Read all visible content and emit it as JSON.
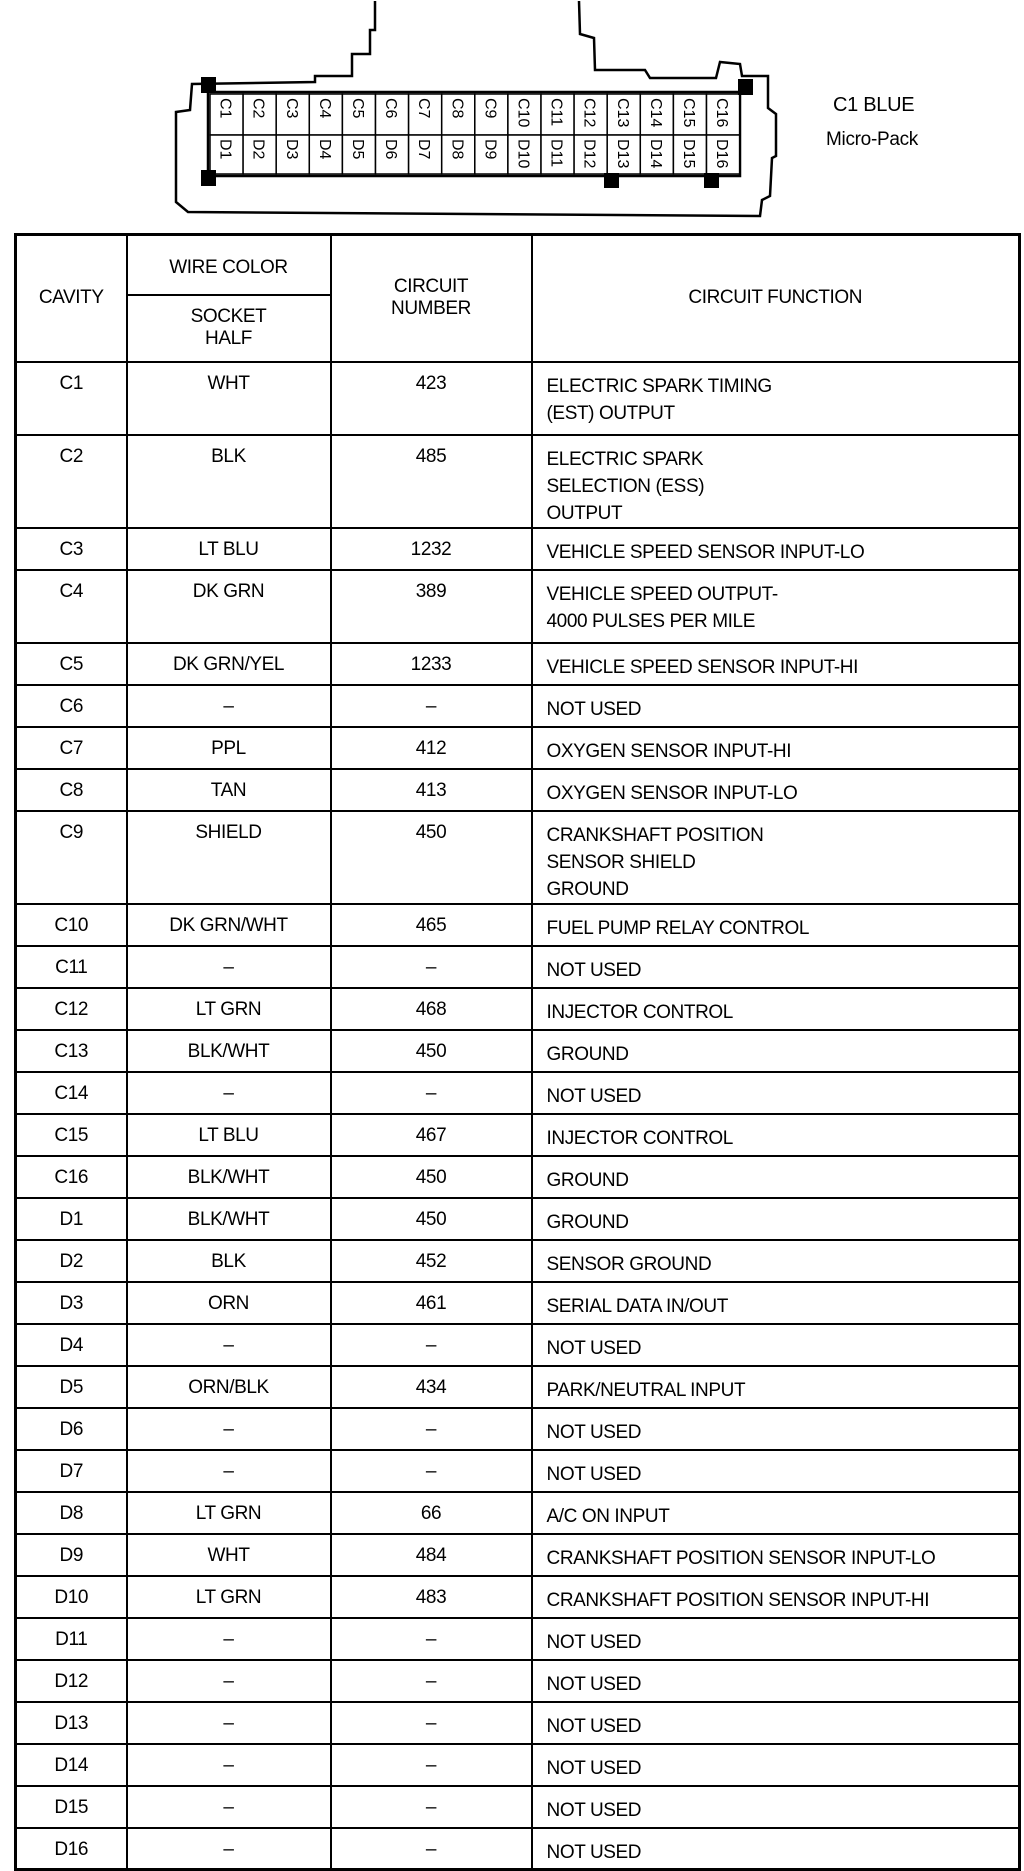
{
  "connector": {
    "name": "C1 BLUE",
    "type": "Micro-Pack",
    "top_row": [
      "C1",
      "C2",
      "C3",
      "C4",
      "C5",
      "C6",
      "C7",
      "C8",
      "C9",
      "C10",
      "C11",
      "C12",
      "C13",
      "C14",
      "C15",
      "C16"
    ],
    "bottom_row": [
      "D1",
      "D2",
      "D3",
      "D4",
      "D5",
      "D6",
      "D7",
      "D8",
      "D9",
      "D10",
      "D11",
      "D12",
      "D13",
      "D14",
      "D15",
      "D16"
    ]
  },
  "table": {
    "headers": {
      "cavity": "CAVITY",
      "wire_color": "WIRE COLOR",
      "socket_half": "SOCKET HALF",
      "circuit_number": "CIRCUIT NUMBER",
      "circuit_function": "CIRCUIT FUNCTION"
    },
    "rows": [
      {
        "cavity": "C1",
        "color": "WHT",
        "circuit": "423",
        "function": "ELECTRIC SPARK TIMING (EST) OUTPUT",
        "lines": 2
      },
      {
        "cavity": "C2",
        "color": "BLK",
        "circuit": "485",
        "function": "ELECTRIC SPARK SELECTION (ESS) OUTPUT",
        "lines": 2
      },
      {
        "cavity": "C3",
        "color": "LT BLU",
        "circuit": "1232",
        "function": "VEHICLE SPEED SENSOR INPUT-LO",
        "lines": 1
      },
      {
        "cavity": "C4",
        "color": "DK GRN",
        "circuit": "389",
        "function": "VEHICLE SPEED OUTPUT-4000 PULSES PER MILE",
        "lines": 2
      },
      {
        "cavity": "C5",
        "color": "DK GRN/YEL",
        "circuit": "1233",
        "function": "VEHICLE SPEED SENSOR INPUT-HI",
        "lines": 1
      },
      {
        "cavity": "C6",
        "color": "–",
        "circuit": "–",
        "function": "NOT USED",
        "lines": 1
      },
      {
        "cavity": "C7",
        "color": "PPL",
        "circuit": "412",
        "function": "OXYGEN SENSOR INPUT-HI",
        "lines": 1
      },
      {
        "cavity": "C8",
        "color": "TAN",
        "circuit": "413",
        "function": "OXYGEN SENSOR INPUT-LO",
        "lines": 1
      },
      {
        "cavity": "C9",
        "color": "SHIELD",
        "circuit": "450",
        "function": "CRANKSHAFT POSITION SENSOR SHIELD GROUND",
        "lines": 2
      },
      {
        "cavity": "C10",
        "color": "DK GRN/WHT",
        "circuit": "465",
        "function": "FUEL PUMP RELAY CONTROL",
        "lines": 1
      },
      {
        "cavity": "C11",
        "color": "–",
        "circuit": "–",
        "function": "NOT USED",
        "lines": 1
      },
      {
        "cavity": "C12",
        "color": "LT GRN",
        "circuit": "468",
        "function": "INJECTOR CONTROL",
        "lines": 1
      },
      {
        "cavity": "C13",
        "color": "BLK/WHT",
        "circuit": "450",
        "function": "GROUND",
        "lines": 1
      },
      {
        "cavity": "C14",
        "color": "–",
        "circuit": "–",
        "function": "NOT USED",
        "lines": 1
      },
      {
        "cavity": "C15",
        "color": "LT BLU",
        "circuit": "467",
        "function": "INJECTOR CONTROL",
        "lines": 1
      },
      {
        "cavity": "C16",
        "color": "BLK/WHT",
        "circuit": "450",
        "function": "GROUND",
        "lines": 1
      },
      {
        "cavity": "D1",
        "color": "BLK/WHT",
        "circuit": "450",
        "function": "GROUND",
        "lines": 1
      },
      {
        "cavity": "D2",
        "color": "BLK",
        "circuit": "452",
        "function": "SENSOR GROUND",
        "lines": 1
      },
      {
        "cavity": "D3",
        "color": "ORN",
        "circuit": "461",
        "function": "SERIAL DATA IN/OUT",
        "lines": 1
      },
      {
        "cavity": "D4",
        "color": "–",
        "circuit": "–",
        "function": "NOT USED",
        "lines": 1
      },
      {
        "cavity": "D5",
        "color": "ORN/BLK",
        "circuit": "434",
        "function": "PARK/NEUTRAL INPUT",
        "lines": 1
      },
      {
        "cavity": "D6",
        "color": "–",
        "circuit": "–",
        "function": "NOT USED",
        "lines": 1
      },
      {
        "cavity": "D7",
        "color": "–",
        "circuit": "–",
        "function": "NOT USED",
        "lines": 1
      },
      {
        "cavity": "D8",
        "color": "LT GRN",
        "circuit": "66",
        "function": "A/C ON INPUT",
        "lines": 1
      },
      {
        "cavity": "D9",
        "color": "WHT",
        "circuit": "484",
        "function": "CRANKSHAFT POSITION SENSOR INPUT-LO",
        "lines": 1
      },
      {
        "cavity": "D10",
        "color": "LT GRN",
        "circuit": "483",
        "function": "CRANKSHAFT POSITION SENSOR INPUT-HI",
        "lines": 1
      },
      {
        "cavity": "D11",
        "color": "–",
        "circuit": "–",
        "function": "NOT USED",
        "lines": 1
      },
      {
        "cavity": "D12",
        "color": "–",
        "circuit": "–",
        "function": "NOT USED",
        "lines": 1
      },
      {
        "cavity": "D13",
        "color": "–",
        "circuit": "–",
        "function": "NOT USED",
        "lines": 1
      },
      {
        "cavity": "D14",
        "color": "–",
        "circuit": "–",
        "function": "NOT USED",
        "lines": 1
      },
      {
        "cavity": "D15",
        "color": "–",
        "circuit": "–",
        "function": "NOT USED",
        "lines": 1
      },
      {
        "cavity": "D16",
        "color": "–",
        "circuit": "–",
        "function": "NOT USED",
        "lines": 1
      }
    ]
  }
}
